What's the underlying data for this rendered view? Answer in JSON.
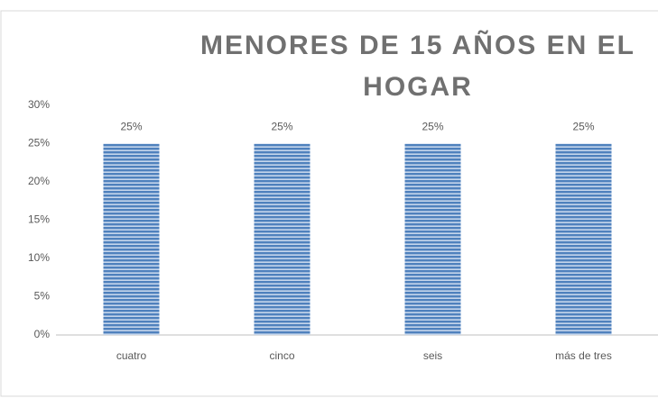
{
  "chart_data": {
    "type": "bar",
    "title": "MENORES DE 15 AÑOS EN EL HOGAR",
    "categories": [
      "cuatro",
      "cinco",
      "seis",
      "más de tres"
    ],
    "values": [
      25,
      25,
      25,
      25
    ],
    "value_labels": [
      "25%",
      "25%",
      "25%",
      "25%"
    ],
    "color": "#4f81bd",
    "ylim": [
      0,
      30
    ],
    "yticks": [
      {
        "value": 0,
        "label": "0%"
      },
      {
        "value": 5,
        "label": "5%"
      },
      {
        "value": 10,
        "label": "10%"
      },
      {
        "value": 15,
        "label": "15%"
      },
      {
        "value": 20,
        "label": "20%"
      },
      {
        "value": 25,
        "label": "25%"
      },
      {
        "value": 30,
        "label": "30%"
      }
    ],
    "grid": false
  }
}
